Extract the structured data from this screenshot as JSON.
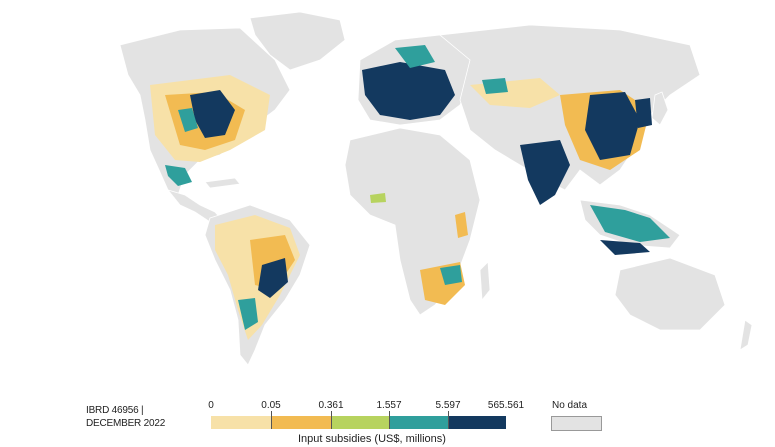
{
  "map": {
    "credit_line1": "IBRD 46956 |",
    "credit_line2": "DECEMBER 2022"
  },
  "legend": {
    "title": "Input subsidies (US$, millions)",
    "ticks": [
      "0",
      "0.05",
      "0.361",
      "1.557",
      "5.597",
      "565.561"
    ],
    "bins": [
      {
        "from": "0",
        "to": "0.05",
        "color": "#f7e1a8"
      },
      {
        "from": "0.05",
        "to": "0.361",
        "color": "#f2bb52"
      },
      {
        "from": "0.361",
        "to": "1.557",
        "color": "#b7d35f"
      },
      {
        "from": "1.557",
        "to": "5.597",
        "color": "#2f9f9c"
      },
      {
        "from": "5.597",
        "to": "565.561",
        "color": "#13395f"
      }
    ],
    "no_data_label": "No data",
    "no_data_color": "#e3e3e3"
  }
}
